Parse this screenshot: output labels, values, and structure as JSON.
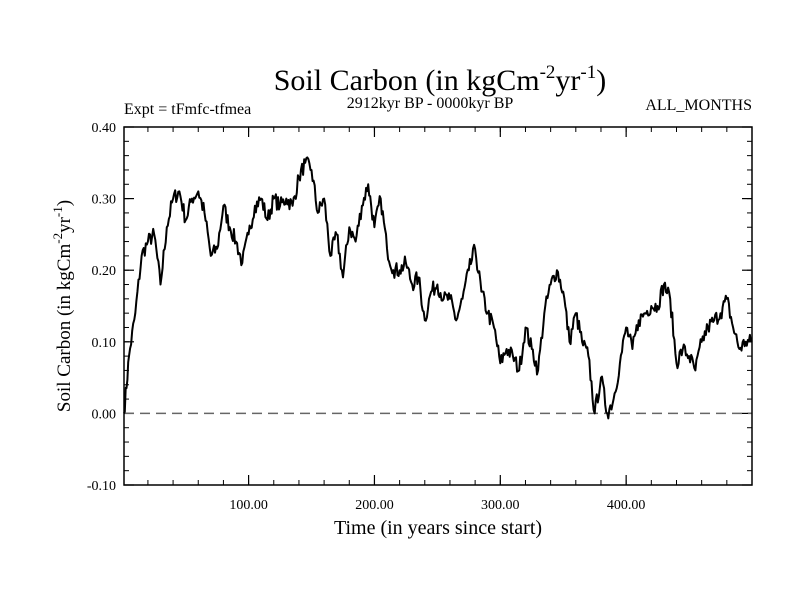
{
  "title": {
    "main": "Soil Carbon (in kgCm",
    "sup1": "-2",
    "mid": "yr",
    "sup2": "-1",
    "close": ")"
  },
  "subtitle_left": "Expt = tFmfc-tfmea",
  "subtitle_center": "2912kyr BP - 0000kyr BP",
  "subtitle_right": "ALL_MONTHS",
  "chart_data": {
    "type": "line",
    "title": "Soil Carbon (in kgCm-2yr-1)",
    "xlabel": "Time (in years since start)",
    "ylabel": "Soil Carbon (in kgCm-2yr-1)",
    "ylabel_parts": {
      "main": "Soil Carbon (in kgCm",
      "sup1": "-2",
      "mid": "yr",
      "sup2": "-1",
      "close": ")"
    },
    "xlim": [
      1,
      500
    ],
    "ylim": [
      -0.1,
      0.4
    ],
    "xticks": [
      100,
      200,
      300,
      400
    ],
    "xtick_labels": [
      "100.00",
      "200.00",
      "300.00",
      "400.00"
    ],
    "yticks": [
      -0.1,
      0.0,
      0.1,
      0.2,
      0.3,
      0.4
    ],
    "ytick_labels": [
      "-0.10",
      "0.00",
      "0.10",
      "0.20",
      "0.30",
      "0.40"
    ],
    "reference_line": {
      "y": 0.0,
      "style": "dashed"
    },
    "series": [
      {
        "name": "Soil Carbon",
        "x": [
          1,
          5,
          10,
          15,
          20,
          25,
          30,
          35,
          40,
          45,
          50,
          55,
          60,
          65,
          70,
          75,
          80,
          85,
          90,
          95,
          100,
          105,
          110,
          115,
          120,
          125,
          130,
          135,
          140,
          145,
          150,
          155,
          160,
          165,
          170,
          175,
          180,
          185,
          190,
          195,
          200,
          205,
          210,
          215,
          220,
          225,
          230,
          235,
          240,
          245,
          250,
          255,
          260,
          265,
          270,
          275,
          280,
          285,
          290,
          295,
          300,
          305,
          310,
          315,
          320,
          325,
          330,
          335,
          340,
          345,
          350,
          355,
          360,
          365,
          370,
          375,
          380,
          385,
          390,
          395,
          400,
          405,
          410,
          415,
          420,
          425,
          430,
          435,
          440,
          445,
          450,
          455,
          460,
          465,
          470,
          475,
          480,
          485,
          490,
          495,
          500
        ],
        "values": [
          0.0,
          0.08,
          0.14,
          0.22,
          0.24,
          0.25,
          0.18,
          0.26,
          0.3,
          0.31,
          0.27,
          0.3,
          0.31,
          0.28,
          0.22,
          0.23,
          0.29,
          0.26,
          0.24,
          0.21,
          0.25,
          0.29,
          0.3,
          0.27,
          0.3,
          0.29,
          0.3,
          0.29,
          0.33,
          0.35,
          0.34,
          0.28,
          0.3,
          0.22,
          0.25,
          0.19,
          0.26,
          0.24,
          0.29,
          0.32,
          0.26,
          0.3,
          0.23,
          0.2,
          0.2,
          0.21,
          0.18,
          0.19,
          0.13,
          0.17,
          0.18,
          0.16,
          0.16,
          0.13,
          0.16,
          0.2,
          0.23,
          0.17,
          0.14,
          0.12,
          0.07,
          0.09,
          0.08,
          0.06,
          0.12,
          0.09,
          0.06,
          0.14,
          0.18,
          0.2,
          0.17,
          0.1,
          0.14,
          0.1,
          0.08,
          0.0,
          0.05,
          0.0,
          0.02,
          0.07,
          0.12,
          0.09,
          0.13,
          0.14,
          0.15,
          0.15,
          0.18,
          0.16,
          0.07,
          0.09,
          0.08,
          0.06,
          0.1,
          0.12,
          0.13,
          0.14,
          0.16,
          0.12,
          0.09,
          0.1,
          0.1
        ]
      }
    ]
  }
}
